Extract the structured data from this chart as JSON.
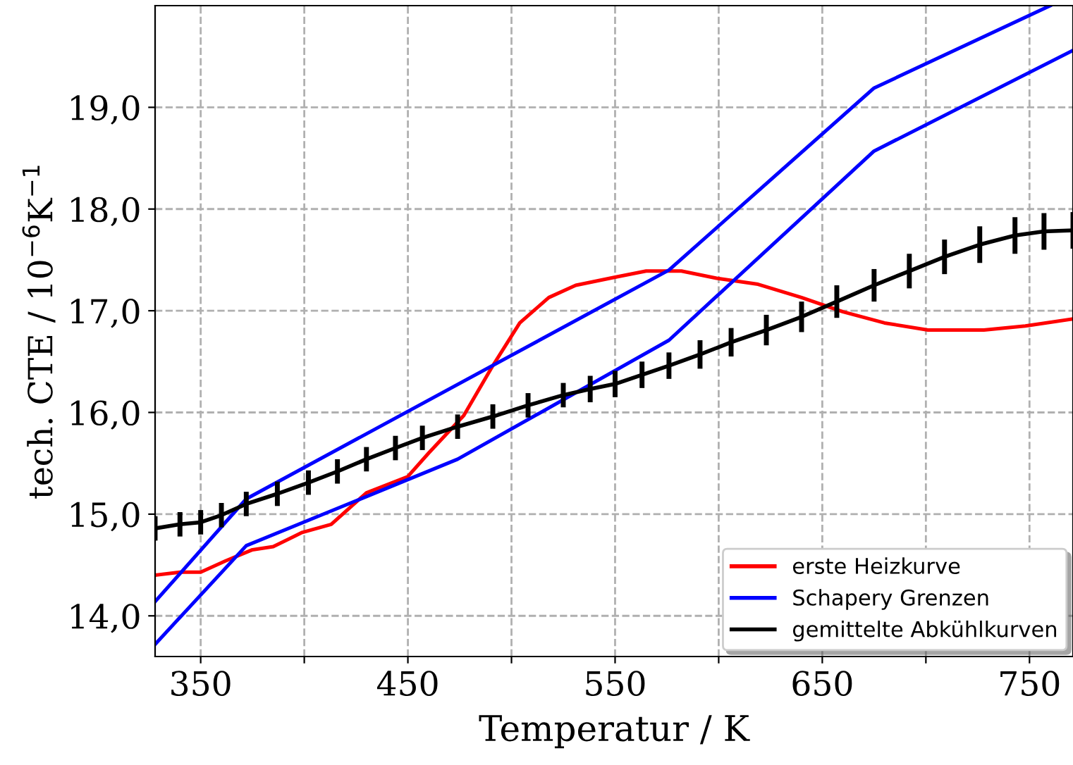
{
  "chart_data": {
    "type": "line",
    "xlabel": "Temperatur / K",
    "ylabel": "tech. CTE / 10$^{−6}$K$^{−1}$",
    "xlim": [
      328,
      771
    ],
    "ylim": [
      13.6,
      20.0
    ],
    "xticks": [
      350,
      {
        "value": 400,
        "label": null
      },
      450,
      {
        "value": 500,
        "label": null
      },
      550,
      {
        "value": 600,
        "label": null
      },
      650,
      {
        "value": 700,
        "label": null
      },
      750
    ],
    "yticks": [
      {
        "value": 14,
        "label": "14,0"
      },
      {
        "value": 15,
        "label": "15,0"
      },
      {
        "value": 16,
        "label": "16,0"
      },
      {
        "value": 17,
        "label": "17,0"
      },
      {
        "value": 18,
        "label": "18,0"
      },
      {
        "value": 19,
        "label": "19,0"
      }
    ],
    "grid": true,
    "legend": "bottom right",
    "series": [
      {
        "name": "erste Heizkurve",
        "color": "#ff0000",
        "x": [
          328,
          340,
          350,
          362,
          375,
          385,
          399,
          413,
          430,
          450,
          460,
          477,
          491,
          504,
          518,
          531,
          550,
          565,
          582,
          599,
          619,
          640,
          660,
          680,
          701,
          728,
          748,
          771
        ],
        "values": [
          14.4,
          14.43,
          14.43,
          14.54,
          14.65,
          14.68,
          14.82,
          14.9,
          15.21,
          15.37,
          15.6,
          15.97,
          16.46,
          16.88,
          17.13,
          17.25,
          17.33,
          17.39,
          17.39,
          17.32,
          17.26,
          17.13,
          16.99,
          16.88,
          16.81,
          16.81,
          16.85,
          16.92
        ]
      },
      {
        "name": "Schapery Grenzen",
        "color": "#0000ff",
        "x": [
          328,
          372,
          576,
          675,
          760
        ],
        "values": [
          14.14,
          15.15,
          17.4,
          19.19,
          20.0
        ]
      },
      {
        "color": "#0000ff",
        "x": [
          328,
          372,
          474,
          576,
          675,
          771
        ],
        "values": [
          13.72,
          14.69,
          15.54,
          16.71,
          18.57,
          19.56
        ]
      },
      {
        "name": "gemittelte Abkühlkurven",
        "color": "#000000",
        "x": [
          328,
          340,
          350,
          360,
          372,
          387,
          402,
          416,
          430,
          444,
          457,
          474,
          491,
          508,
          525,
          538,
          550,
          563,
          576,
          591,
          606,
          623,
          640,
          657,
          675,
          692,
          709,
          726,
          743,
          757,
          771
        ],
        "values": [
          14.86,
          14.9,
          14.92,
          14.99,
          15.1,
          15.2,
          15.31,
          15.42,
          15.54,
          15.65,
          15.75,
          15.86,
          15.96,
          16.07,
          16.17,
          16.23,
          16.28,
          16.37,
          16.46,
          16.57,
          16.69,
          16.81,
          16.94,
          17.09,
          17.25,
          17.39,
          17.53,
          17.65,
          17.74,
          17.78,
          17.79
        ],
        "errors": [
          0.12,
          0.12,
          0.12,
          0.12,
          0.12,
          0.12,
          0.12,
          0.12,
          0.12,
          0.12,
          0.12,
          0.12,
          0.12,
          0.12,
          0.12,
          0.13,
          0.13,
          0.13,
          0.13,
          0.14,
          0.14,
          0.15,
          0.15,
          0.16,
          0.16,
          0.17,
          0.17,
          0.18,
          0.18,
          0.18,
          0.18
        ]
      }
    ]
  }
}
